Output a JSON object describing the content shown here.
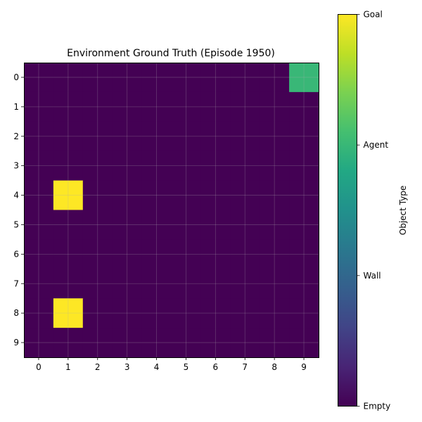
{
  "chart_data": {
    "type": "heatmap",
    "title": "Environment Ground Truth (Episode 1950)",
    "x_ticks": [
      "0",
      "1",
      "2",
      "3",
      "4",
      "5",
      "6",
      "7",
      "8",
      "9"
    ],
    "y_ticks": [
      "0",
      "1",
      "2",
      "3",
      "4",
      "5",
      "6",
      "7",
      "8",
      "9"
    ],
    "grid": true,
    "colormap": "viridis",
    "colorbar": {
      "label": "Object Type",
      "ticks": [
        {
          "label": "Empty",
          "value": 0
        },
        {
          "label": "Wall",
          "value": 1
        },
        {
          "label": "Agent",
          "value": 2
        },
        {
          "label": "Goal",
          "value": 3
        }
      ],
      "range": [
        0,
        3
      ]
    },
    "cell_values": [
      [
        0,
        0,
        0,
        0,
        0,
        0,
        0,
        0,
        0,
        2
      ],
      [
        0,
        0,
        0,
        0,
        0,
        0,
        0,
        0,
        0,
        0
      ],
      [
        0,
        0,
        0,
        0,
        0,
        0,
        0,
        0,
        0,
        0
      ],
      [
        0,
        0,
        0,
        0,
        0,
        0,
        0,
        0,
        0,
        0
      ],
      [
        0,
        3,
        0,
        0,
        0,
        0,
        0,
        0,
        0,
        0
      ],
      [
        0,
        0,
        0,
        0,
        0,
        0,
        0,
        0,
        0,
        0
      ],
      [
        0,
        0,
        0,
        0,
        0,
        0,
        0,
        0,
        0,
        0
      ],
      [
        0,
        0,
        0,
        0,
        0,
        0,
        0,
        0,
        0,
        0
      ],
      [
        0,
        3,
        0,
        0,
        0,
        0,
        0,
        0,
        0,
        0
      ],
      [
        0,
        0,
        0,
        0,
        0,
        0,
        0,
        0,
        0,
        0
      ]
    ]
  }
}
